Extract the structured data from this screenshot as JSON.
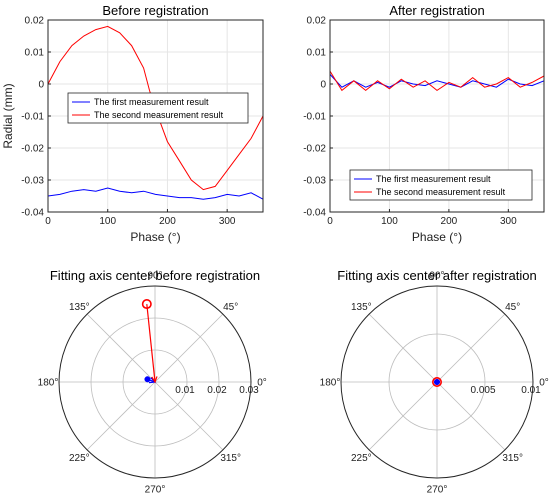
{
  "chart_data": [
    {
      "type": "line",
      "title": "Before registration",
      "xlabel": "Phase (°)",
      "ylabel": "Radial (mm)",
      "xlim": [
        0,
        360
      ],
      "ylim": [
        -0.04,
        0.02
      ],
      "xticks": [
        0,
        100,
        200,
        300
      ],
      "yticks": [
        -0.04,
        -0.03,
        -0.02,
        -0.01,
        0,
        0.01,
        0.02
      ],
      "xtick_labels": [
        "0",
        "100",
        "200",
        "300"
      ],
      "ytick_labels": [
        "-0.04",
        "-0.03",
        "-0.02",
        "-0.01",
        "0",
        "0.01",
        "0.02"
      ],
      "grid": true,
      "legend_position": "center",
      "series": [
        {
          "name": "The first measurement result",
          "color": "#0000ff",
          "x": [
            0,
            20,
            40,
            60,
            80,
            100,
            120,
            140,
            160,
            180,
            200,
            220,
            240,
            260,
            280,
            300,
            320,
            340,
            360
          ],
          "y": [
            -0.035,
            -0.0345,
            -0.0335,
            -0.033,
            -0.0335,
            -0.0325,
            -0.0335,
            -0.034,
            -0.0335,
            -0.0345,
            -0.035,
            -0.0355,
            -0.0355,
            -0.036,
            -0.0355,
            -0.0345,
            -0.035,
            -0.034,
            -0.036
          ]
        },
        {
          "name": "The second measurement result",
          "color": "#ff0000",
          "x": [
            0,
            20,
            40,
            60,
            80,
            100,
            120,
            140,
            160,
            170,
            180,
            200,
            220,
            240,
            260,
            280,
            300,
            320,
            340,
            360
          ],
          "y": [
            0.0,
            0.007,
            0.012,
            0.015,
            0.017,
            0.018,
            0.016,
            0.012,
            0.005,
            -0.002,
            -0.008,
            -0.018,
            -0.024,
            -0.03,
            -0.033,
            -0.032,
            -0.027,
            -0.022,
            -0.017,
            -0.01
          ]
        }
      ]
    },
    {
      "type": "line",
      "title": "After registration",
      "xlabel": "Phase (°)",
      "ylabel": "",
      "xlim": [
        0,
        360
      ],
      "ylim": [
        -0.04,
        0.02
      ],
      "xticks": [
        0,
        100,
        200,
        300
      ],
      "yticks": [
        -0.04,
        -0.03,
        -0.02,
        -0.01,
        0,
        0.01,
        0.02
      ],
      "xtick_labels": [
        "0",
        "100",
        "200",
        "300"
      ],
      "ytick_labels": [
        "-0.04",
        "-0.03",
        "-0.02",
        "-0.01",
        "0",
        "0.01",
        "0.02"
      ],
      "grid": true,
      "legend_position": "bottom",
      "series": [
        {
          "name": "The first measurement result",
          "color": "#0000ff",
          "x": [
            0,
            20,
            40,
            60,
            80,
            100,
            120,
            140,
            160,
            180,
            200,
            220,
            240,
            260,
            280,
            300,
            320,
            340,
            360
          ],
          "y": [
            0.003,
            -0.001,
            0.001,
            -0.001,
            0.0005,
            -0.001,
            0.001,
            0.0,
            -0.0005,
            0.001,
            0.0,
            -0.001,
            0.001,
            0.0,
            -0.001,
            0.0015,
            0.0,
            -0.0005,
            0.001
          ]
        },
        {
          "name": "The second measurement result",
          "color": "#ff0000",
          "x": [
            0,
            20,
            40,
            60,
            80,
            100,
            120,
            140,
            160,
            180,
            200,
            220,
            240,
            260,
            280,
            300,
            320,
            340,
            360
          ],
          "y": [
            0.004,
            -0.002,
            0.001,
            -0.002,
            0.001,
            -0.0015,
            0.0015,
            -0.001,
            0.001,
            -0.002,
            0.0005,
            -0.001,
            0.002,
            -0.001,
            0.0,
            0.002,
            -0.001,
            0.0005,
            0.0025
          ]
        }
      ]
    },
    {
      "type": "polar",
      "title": "Fitting axis center before registration",
      "rlim": [
        0,
        0.03
      ],
      "rticks": [
        0.01,
        0.02,
        0.03
      ],
      "rtick_labels": [
        "0.01",
        "0.02",
        "0.03"
      ],
      "theta_labels": [
        "0°",
        "45°",
        "90°",
        "135°",
        "180°",
        "225°",
        "270°",
        "315°"
      ],
      "theta_angles": [
        0,
        45,
        90,
        135,
        180,
        225,
        270,
        315
      ],
      "points": [
        {
          "series": "first",
          "color": "#0000ff",
          "marker": "filled-circle",
          "theta": 160,
          "r": 0.0025
        },
        {
          "series": "second",
          "color": "#ff0000",
          "marker": "open-circle",
          "theta": 96,
          "r": 0.0245
        }
      ],
      "vectors": [
        {
          "color": "#0000ff",
          "theta": 160,
          "r": 0.0025
        },
        {
          "color": "#ff0000",
          "theta": 96,
          "r": 0.0245
        }
      ]
    },
    {
      "type": "polar",
      "title": "Fitting axis center after registration",
      "rlim": [
        0,
        0.01
      ],
      "rticks": [
        0.005,
        0.01
      ],
      "rtick_labels": [
        "0.005",
        "0.01"
      ],
      "theta_labels": [
        "0°",
        "45°",
        "90°",
        "135°",
        "180°",
        "225°",
        "270°",
        "315°"
      ],
      "theta_angles": [
        0,
        45,
        90,
        135,
        180,
        225,
        270,
        315
      ],
      "points": [
        {
          "series": "second",
          "color": "#ff0000",
          "marker": "open-circle",
          "theta": 0,
          "r": 0.0
        },
        {
          "series": "first",
          "color": "#0000ff",
          "marker": "filled-circle",
          "theta": 0,
          "r": 0.0
        }
      ],
      "vectors": []
    }
  ]
}
